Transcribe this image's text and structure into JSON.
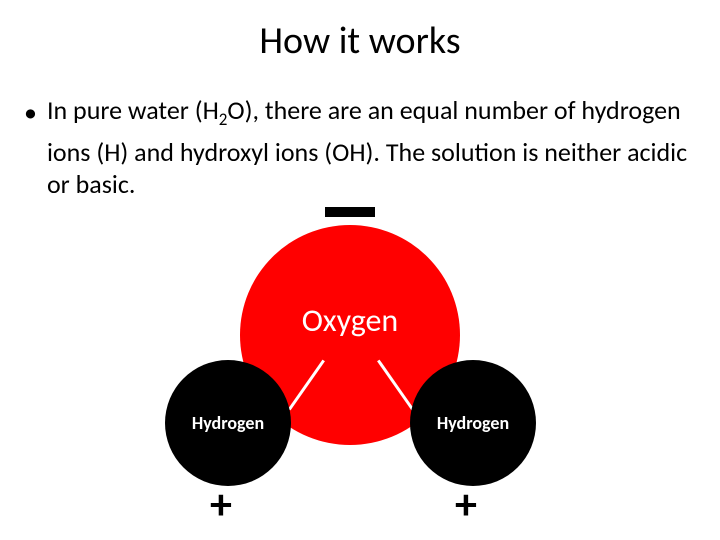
{
  "title": "How it works",
  "bullet": {
    "pre": "In pure water (H",
    "sub": "2",
    "post": "O), there are an equal number of hydrogen ions (H) and hydroxyl ions (OH). The solution is neither acidic or basic."
  },
  "diagram": {
    "oxygen_label": "Oxygen",
    "hydrogen_label": "Hydrogen",
    "oxygen_color": "#ff0000",
    "hydrogen_color": "#000000",
    "oxygen_text_color": "#ffffff",
    "hydrogen_text_color": "#ffffff",
    "minus_color": "#000000",
    "plus_sign": "+",
    "oxygen_diameter": 220,
    "hydrogen_diameter": 126,
    "background": "#ffffff"
  }
}
